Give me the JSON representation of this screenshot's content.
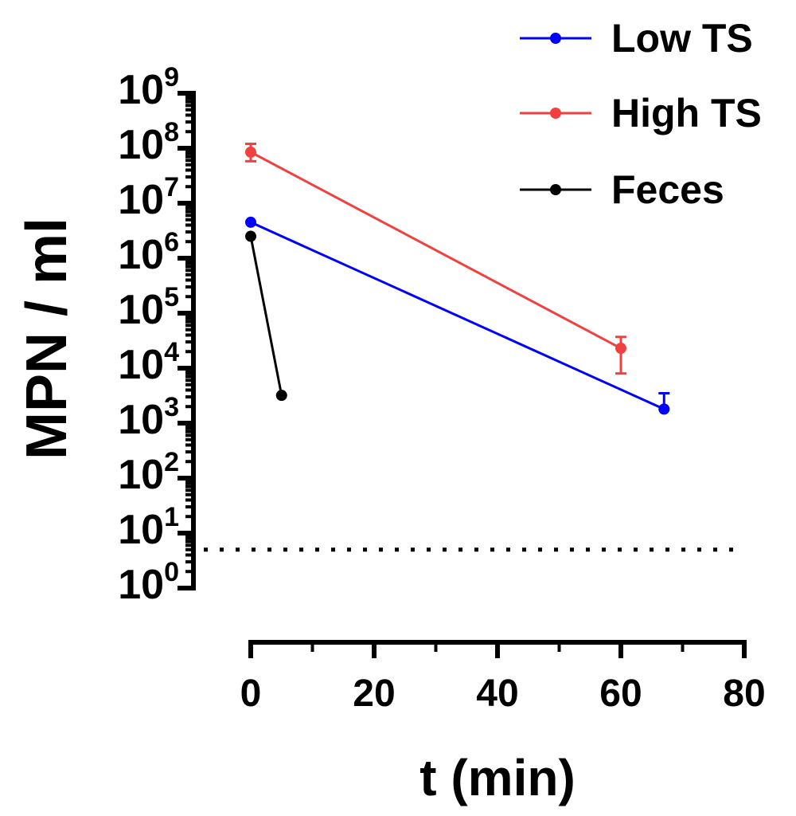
{
  "chart_data": {
    "type": "line",
    "title": "",
    "xlabel": "t (min)",
    "ylabel": "MPN / ml",
    "xlim": [
      0,
      80
    ],
    "ylim": [
      1,
      1000000000
    ],
    "yscale": "log",
    "xticks": [
      "0",
      "20",
      "40",
      "60",
      "80"
    ],
    "yticks": [
      {
        "base": "10",
        "exp": "0"
      },
      {
        "base": "10",
        "exp": "1"
      },
      {
        "base": "10",
        "exp": "2"
      },
      {
        "base": "10",
        "exp": "3"
      },
      {
        "base": "10",
        "exp": "4"
      },
      {
        "base": "10",
        "exp": "5"
      },
      {
        "base": "10",
        "exp": "6"
      },
      {
        "base": "10",
        "exp": "7"
      },
      {
        "base": "10",
        "exp": "8"
      },
      {
        "base": "10",
        "exp": "9"
      }
    ],
    "grid": false,
    "legend_position": "top-right",
    "detection_limit": 5,
    "series": [
      {
        "name": "Low TS",
        "color": "#0000ff",
        "points": [
          {
            "x": 0,
            "y": 4500000
          },
          {
            "x": 67,
            "y": 1800,
            "err_hi": 3500
          }
        ]
      },
      {
        "name": "High TS",
        "color": "#f04040",
        "points": [
          {
            "x": 0,
            "y": 85000000,
            "err_lo": 58000000,
            "err_hi": 120000000
          },
          {
            "x": 60,
            "y": 23000,
            "err_lo": 8000,
            "err_hi": 37000
          }
        ]
      },
      {
        "name": "Feces",
        "color": "#000000",
        "points": [
          {
            "x": 0,
            "y": 2500000
          },
          {
            "x": 5,
            "y": 3200
          }
        ]
      }
    ]
  }
}
